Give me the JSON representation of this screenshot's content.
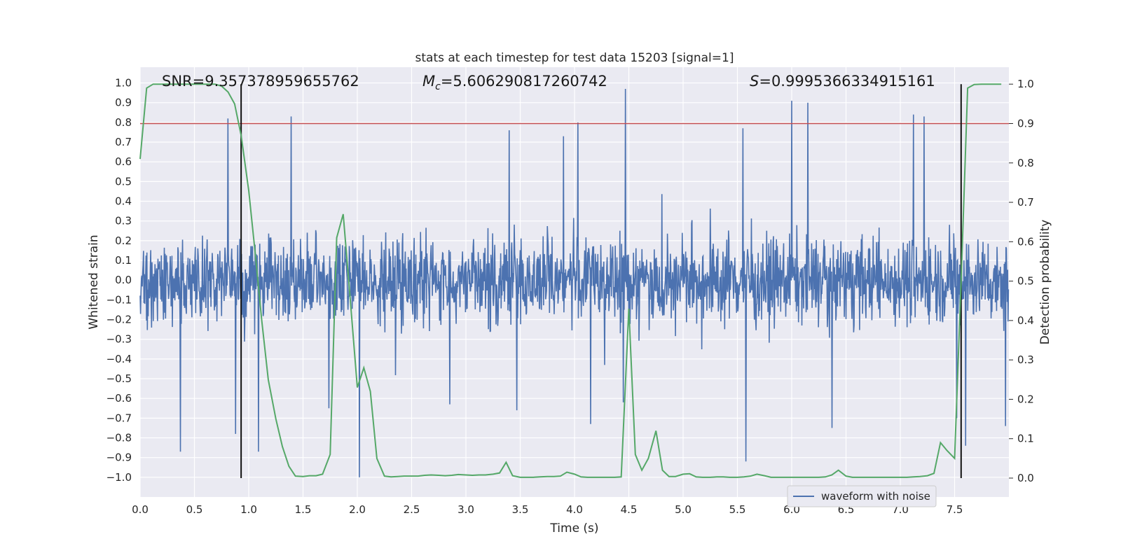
{
  "chart_data": {
    "type": "line",
    "title": "stats at each timestep for test data 15203 [signal=1]",
    "xlabel": "Time (s)",
    "ylabel": "Whitened strain",
    "y2label": "Detection probability",
    "xlim": [
      0.0,
      8.0
    ],
    "ylim": [
      -1.1,
      1.08
    ],
    "y2lim": [
      -0.048,
      1.043
    ],
    "grid": true,
    "x_ticks": [
      "0.0",
      "0.5",
      "1.0",
      "1.5",
      "2.0",
      "2.5",
      "3.0",
      "3.5",
      "4.0",
      "4.5",
      "5.0",
      "5.5",
      "6.0",
      "6.5",
      "7.0",
      "7.5"
    ],
    "y_ticks": [
      "−1.0",
      "−0.9",
      "−0.8",
      "−0.7",
      "−0.6",
      "−0.5",
      "−0.4",
      "−0.3",
      "−0.2",
      "−0.1",
      "0.0",
      "0.1",
      "0.2",
      "0.3",
      "0.4",
      "0.5",
      "0.6",
      "0.7",
      "0.8",
      "0.9",
      "1.0"
    ],
    "y2_ticks": [
      "0.0",
      "0.1",
      "0.2",
      "0.3",
      "0.4",
      "0.5",
      "0.6",
      "0.7",
      "0.8",
      "0.9",
      "1.0"
    ],
    "annotations": {
      "snr": "SNR=9.357378959655762",
      "mc_symbol": "M",
      "mc_sub": "c",
      "mc_value": "=5.606290817260742",
      "s_symbol": "S",
      "s_value": "=0.9995366334915161"
    },
    "legend": {
      "label": "waveform with noise",
      "loc": "lower right"
    },
    "threshold": {
      "y2": 0.9,
      "color": "#c44e52"
    },
    "vlines": [
      0.93,
      7.56
    ],
    "series": [
      {
        "name": "waveform with noise",
        "color": "#4c72b0",
        "axis": "left",
        "n_samples": 2048,
        "envelope_typical": 0.38,
        "peaks": [
          {
            "x": 0.37,
            "y": -0.87
          },
          {
            "x": 0.81,
            "y": 0.82
          },
          {
            "x": 0.88,
            "y": -0.78
          },
          {
            "x": 1.09,
            "y": -0.87
          },
          {
            "x": 1.39,
            "y": 0.83
          },
          {
            "x": 1.74,
            "y": -0.65
          },
          {
            "x": 2.02,
            "y": -1.0
          },
          {
            "x": 2.85,
            "y": -0.63
          },
          {
            "x": 3.4,
            "y": 0.76
          },
          {
            "x": 3.47,
            "y": -0.66
          },
          {
            "x": 3.9,
            "y": 0.73
          },
          {
            "x": 4.03,
            "y": 0.8
          },
          {
            "x": 4.15,
            "y": -0.73
          },
          {
            "x": 4.47,
            "y": 0.97
          },
          {
            "x": 4.45,
            "y": -0.62
          },
          {
            "x": 5.55,
            "y": 0.77
          },
          {
            "x": 5.58,
            "y": -0.92
          },
          {
            "x": 6.0,
            "y": 0.91
          },
          {
            "x": 6.15,
            "y": 0.9
          },
          {
            "x": 6.37,
            "y": -0.75
          },
          {
            "x": 7.12,
            "y": 0.84
          },
          {
            "x": 7.22,
            "y": 0.83
          },
          {
            "x": 7.52,
            "y": -0.7
          },
          {
            "x": 7.6,
            "y": -0.84
          },
          {
            "x": 7.97,
            "y": -0.74
          }
        ]
      },
      {
        "name": "Detection probability",
        "color": "#55a868",
        "axis": "right",
        "x": [
          0.0,
          0.06,
          0.12,
          0.19,
          0.25,
          0.31,
          0.37,
          0.44,
          0.5,
          0.56,
          0.62,
          0.69,
          0.75,
          0.81,
          0.87,
          0.93,
          1.0,
          1.06,
          1.12,
          1.18,
          1.25,
          1.31,
          1.37,
          1.43,
          1.5,
          1.56,
          1.62,
          1.68,
          1.75,
          1.81,
          1.87,
          1.93,
          2.0,
          2.06,
          2.12,
          2.18,
          2.25,
          2.31,
          2.37,
          2.43,
          2.5,
          2.56,
          2.62,
          2.68,
          2.75,
          2.81,
          2.87,
          2.93,
          3.0,
          3.06,
          3.12,
          3.18,
          3.25,
          3.31,
          3.37,
          3.43,
          3.5,
          3.56,
          3.62,
          3.68,
          3.75,
          3.81,
          3.87,
          3.93,
          4.0,
          4.06,
          4.12,
          4.18,
          4.25,
          4.31,
          4.37,
          4.43,
          4.5,
          4.56,
          4.62,
          4.68,
          4.75,
          4.81,
          4.87,
          4.93,
          5.0,
          5.06,
          5.12,
          5.18,
          5.25,
          5.31,
          5.37,
          5.43,
          5.5,
          5.56,
          5.62,
          5.68,
          5.75,
          5.81,
          5.87,
          5.93,
          6.0,
          6.06,
          6.12,
          6.18,
          6.25,
          6.31,
          6.37,
          6.43,
          6.5,
          6.56,
          6.62,
          6.68,
          6.75,
          6.81,
          6.87,
          6.93,
          7.0,
          7.06,
          7.12,
          7.18,
          7.25,
          7.31,
          7.37,
          7.43,
          7.5,
          7.56,
          7.62,
          7.68,
          7.75,
          7.81,
          7.87,
          7.93
        ],
        "y": [
          0.81,
          0.99,
          1.0,
          1.0,
          1.0,
          1.0,
          1.0,
          1.0,
          1.0,
          1.0,
          1.0,
          1.0,
          0.995,
          0.98,
          0.95,
          0.87,
          0.73,
          0.57,
          0.4,
          0.25,
          0.15,
          0.08,
          0.03,
          0.005,
          0.004,
          0.006,
          0.006,
          0.01,
          0.06,
          0.61,
          0.67,
          0.47,
          0.23,
          0.28,
          0.22,
          0.05,
          0.005,
          0.003,
          0.004,
          0.005,
          0.005,
          0.005,
          0.007,
          0.008,
          0.007,
          0.006,
          0.007,
          0.009,
          0.008,
          0.007,
          0.008,
          0.008,
          0.01,
          0.013,
          0.04,
          0.006,
          0.002,
          0.002,
          0.002,
          0.003,
          0.004,
          0.004,
          0.005,
          0.015,
          0.01,
          0.003,
          0.002,
          0.002,
          0.002,
          0.002,
          0.002,
          0.003,
          0.43,
          0.06,
          0.02,
          0.05,
          0.12,
          0.02,
          0.004,
          0.004,
          0.01,
          0.011,
          0.003,
          0.002,
          0.002,
          0.003,
          0.003,
          0.002,
          0.002,
          0.003,
          0.005,
          0.01,
          0.006,
          0.002,
          0.002,
          0.002,
          0.002,
          0.002,
          0.002,
          0.002,
          0.002,
          0.003,
          0.008,
          0.02,
          0.005,
          0.002,
          0.002,
          0.002,
          0.002,
          0.002,
          0.002,
          0.002,
          0.002,
          0.002,
          0.003,
          0.004,
          0.006,
          0.012,
          0.09,
          0.07,
          0.05,
          0.5,
          0.99,
          0.999,
          1.0,
          1.0,
          1.0,
          1.0
        ]
      }
    ]
  }
}
